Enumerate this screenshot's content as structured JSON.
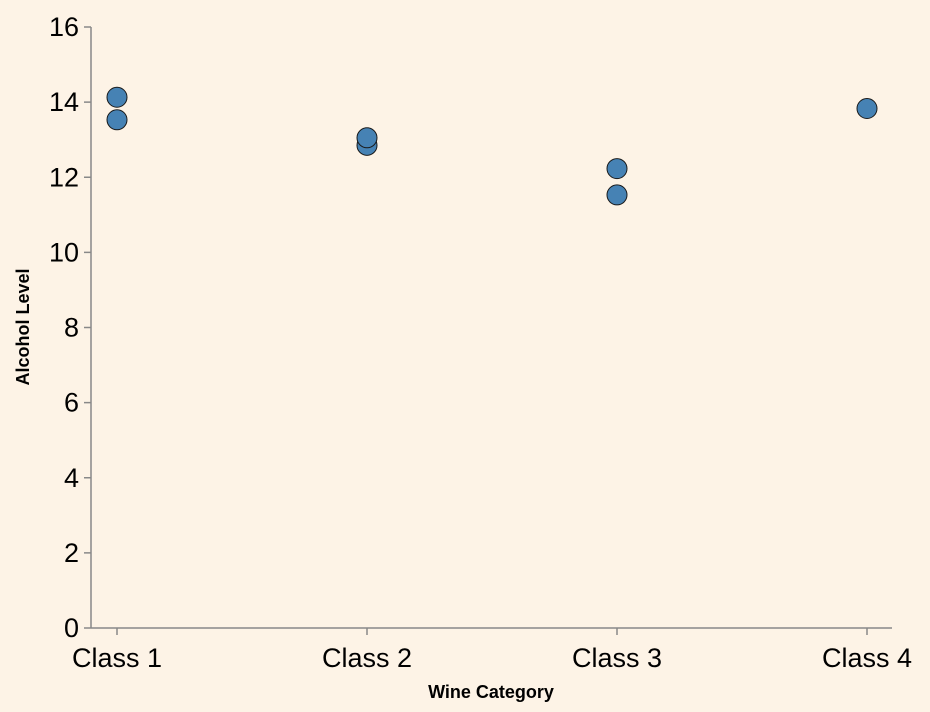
{
  "chart_data": {
    "type": "scatter",
    "title": "",
    "xlabel": "Wine Category",
    "ylabel": "Alcohol Level",
    "categories": [
      "Class 1",
      "Class 2",
      "Class 3",
      "Class 4"
    ],
    "points": [
      {
        "x": "Class 1",
        "y": 14.13
      },
      {
        "x": "Class 1",
        "y": 13.53
      },
      {
        "x": "Class 2",
        "y": 12.85
      },
      {
        "x": "Class 2",
        "y": 13.05
      },
      {
        "x": "Class 3",
        "y": 12.23
      },
      {
        "x": "Class 3",
        "y": 11.53
      },
      {
        "x": "Class 4",
        "y": 13.83
      }
    ],
    "ylim": [
      0,
      16
    ],
    "yticks": [
      0,
      2,
      4,
      6,
      8,
      10,
      12,
      14,
      16
    ],
    "grid": false,
    "point_color": "#4682b4"
  }
}
